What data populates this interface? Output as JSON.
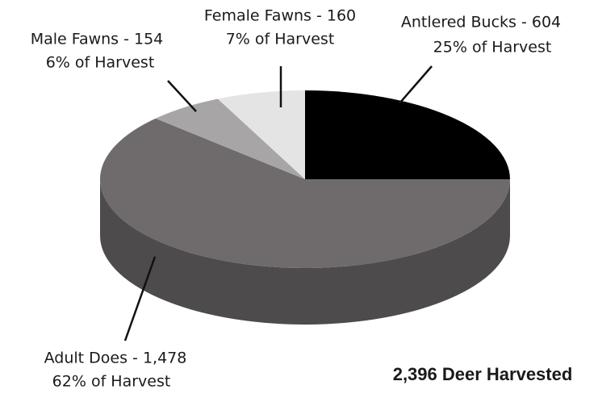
{
  "chart_data": {
    "type": "pie",
    "categories": [
      "Antlered Bucks - 604",
      "Adult Does -  1,478",
      "Male Fawns - 154",
      "Female Fawns - 160"
    ],
    "values": [
      25,
      62,
      6,
      7
    ],
    "value_labels": [
      "25% of Harvest",
      "62% of Harvest",
      "6% of Harvest",
      "7% of Harvest"
    ],
    "colors": [
      "#000000",
      "#6f6b6c",
      "#a7a5a6",
      "#e4e4e4"
    ],
    "annotation": "2,396 Deer Harvested"
  }
}
